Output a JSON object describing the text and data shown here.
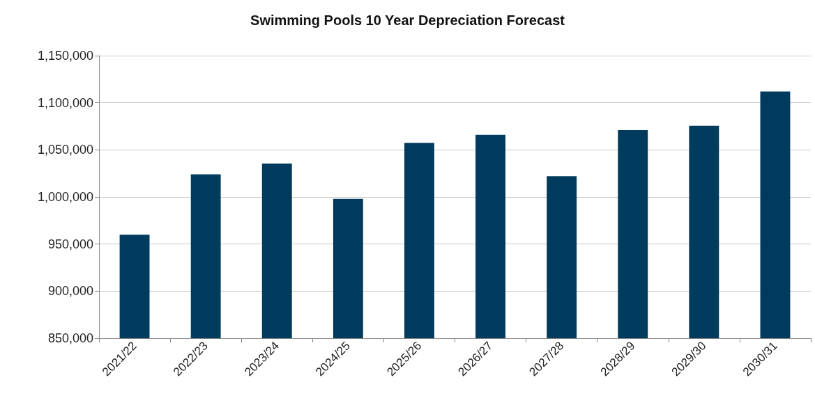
{
  "chart_data": {
    "type": "bar",
    "title": "Swimming Pools 10 Year Depreciation Forecast",
    "categories": [
      "2021/22",
      "2022/23",
      "2023/24",
      "2024/25",
      "2025/26",
      "2026/27",
      "2027/28",
      "2028/29",
      "2029/30",
      "2030/31"
    ],
    "values": [
      960000,
      1024000,
      1035500,
      998000,
      1057500,
      1066000,
      1022000,
      1071000,
      1075500,
      1112000
    ],
    "color": "#003a5c",
    "ylim": [
      850000,
      1150000
    ],
    "yticks": [
      {
        "value": 850000,
        "label": "850,000"
      },
      {
        "value": 900000,
        "label": "900,000"
      },
      {
        "value": 950000,
        "label": "950,000"
      },
      {
        "value": 1000000,
        "label": "1,000,000"
      },
      {
        "value": 1050000,
        "label": "1,050,000"
      },
      {
        "value": 1100000,
        "label": "1,100,000"
      },
      {
        "value": 1150000,
        "label": "1,150,000"
      }
    ],
    "grid": "y"
  }
}
